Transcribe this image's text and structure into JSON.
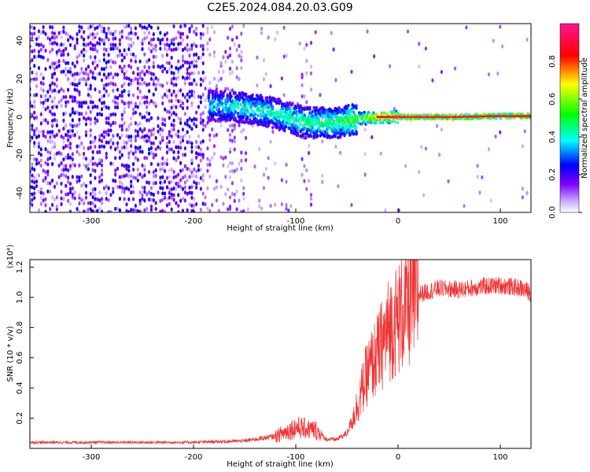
{
  "title": "C2E5.2024.084.20.03.G09",
  "chart_data": [
    {
      "type": "heatmap",
      "xlabel": "Height of straight line (km)",
      "ylabel": "Frequency (Hz)",
      "xlim": [
        -360,
        130
      ],
      "ylim": [
        -50,
        49
      ],
      "xticks": [
        -300,
        -200,
        -100,
        0,
        100
      ],
      "yticks": [
        -40,
        -20,
        0,
        20,
        40
      ],
      "colorbar": {
        "label": "Normalized spectral amplitude",
        "range": [
          0,
          1
        ],
        "ticks": [
          "0.0",
          "0.2",
          "0.4",
          "0.6",
          "0.8"
        ],
        "colors": [
          "#ffffff",
          "#8000ff",
          "#0000ff",
          "#00ffff",
          "#00ff00",
          "#ffff00",
          "#ff0000",
          "#ff1493"
        ]
      },
      "signal_track": [
        {
          "x": -180,
          "y": 6,
          "amp": 0.45
        },
        {
          "x": -150,
          "y": 5,
          "amp": 0.5
        },
        {
          "x": -120,
          "y": 2,
          "amp": 0.5
        },
        {
          "x": -90,
          "y": -3,
          "amp": 0.55
        },
        {
          "x": -60,
          "y": -3,
          "amp": 0.55
        },
        {
          "x": -40,
          "y": -1,
          "amp": 0.65
        },
        {
          "x": -20,
          "y": 0,
          "amp": 0.85
        },
        {
          "x": 0,
          "y": 0,
          "amp": 0.95
        },
        {
          "x": 50,
          "y": 0,
          "amp": 0.95
        },
        {
          "x": 100,
          "y": 0.5,
          "amp": 0.9
        },
        {
          "x": 130,
          "y": 0.5,
          "amp": 0.85
        }
      ],
      "grid": false
    },
    {
      "type": "line",
      "xlabel": "Height of straight line (km)",
      "ylabel": "SNR (10 * v/v)",
      "scale_label": "(x10⁴)",
      "xlim": [
        -360,
        130
      ],
      "ylim": [
        0,
        1.25
      ],
      "xticks": [
        -300,
        -200,
        -100,
        0,
        100
      ],
      "yticks": [
        0.2,
        0.4,
        0.6,
        0.8,
        1.0,
        1.2
      ],
      "color": "#ee3333",
      "series": [
        {
          "x": [
            -360,
            -300,
            -250,
            -200,
            -150,
            -120,
            -100,
            -90,
            -80,
            -70,
            -60,
            -50,
            -40,
            -30,
            -20,
            -10,
            0,
            10,
            20,
            40,
            60,
            80,
            100,
            120,
            130
          ],
          "y": [
            0.04,
            0.04,
            0.04,
            0.04,
            0.05,
            0.08,
            0.14,
            0.13,
            0.12,
            0.06,
            0.06,
            0.1,
            0.28,
            0.5,
            0.62,
            0.78,
            0.86,
            0.95,
            1.02,
            1.06,
            1.05,
            1.07,
            1.08,
            1.06,
            1.03
          ]
        }
      ]
    }
  ]
}
